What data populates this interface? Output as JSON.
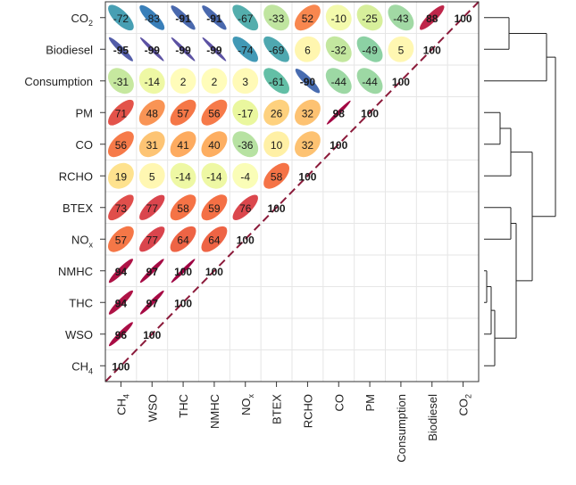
{
  "chart_data": {
    "type": "heatmap",
    "variables": [
      {
        "base": "CH",
        "sub": "4"
      },
      {
        "base": "WSO",
        "sub": ""
      },
      {
        "base": "THC",
        "sub": ""
      },
      {
        "base": "NMHC",
        "sub": ""
      },
      {
        "base": "NO",
        "sub": "x"
      },
      {
        "base": "BTEX",
        "sub": ""
      },
      {
        "base": "RCHO",
        "sub": ""
      },
      {
        "base": "CO",
        "sub": ""
      },
      {
        "base": "PM",
        "sub": ""
      },
      {
        "base": "Consumption",
        "sub": ""
      },
      {
        "base": "Biodiesel",
        "sub": ""
      },
      {
        "base": "CO",
        "sub": "2"
      }
    ],
    "value_scale": "correlation x 100",
    "value_range": [
      -100,
      100
    ],
    "matrix_upper": [
      [
        100,
        96,
        94,
        94,
        57,
        73,
        19,
        56,
        71,
        -31,
        -95,
        -72
      ],
      [
        null,
        100,
        97,
        97,
        77,
        77,
        5,
        31,
        48,
        -14,
        -99,
        -83
      ],
      [
        null,
        null,
        100,
        100,
        64,
        58,
        -14,
        41,
        57,
        2,
        -99,
        -91
      ],
      [
        null,
        null,
        null,
        100,
        64,
        59,
        -14,
        40,
        56,
        2,
        -99,
        -91
      ],
      [
        null,
        null,
        null,
        null,
        100,
        76,
        -4,
        -36,
        -17,
        3,
        -74,
        -67
      ],
      [
        null,
        null,
        null,
        null,
        null,
        100,
        58,
        10,
        26,
        -61,
        -69,
        -33
      ],
      [
        null,
        null,
        null,
        null,
        null,
        null,
        100,
        32,
        32,
        -90,
        6,
        52
      ],
      [
        null,
        null,
        null,
        null,
        null,
        null,
        null,
        100,
        98,
        -44,
        -32,
        -10
      ],
      [
        null,
        null,
        null,
        null,
        null,
        null,
        null,
        null,
        100,
        -44,
        -49,
        -25
      ],
      [
        null,
        null,
        null,
        null,
        null,
        null,
        null,
        null,
        null,
        100,
        5,
        -43
      ],
      [
        null,
        null,
        null,
        null,
        null,
        null,
        null,
        null,
        null,
        null,
        100,
        88
      ],
      [
        null,
        null,
        null,
        null,
        null,
        null,
        null,
        null,
        null,
        null,
        null,
        100
      ]
    ],
    "row_order_top_to_bottom": [
      11,
      10,
      9,
      8,
      7,
      6,
      5,
      4,
      3,
      2,
      1,
      0
    ],
    "column_order_left_to_right": [
      0,
      1,
      2,
      3,
      4,
      5,
      6,
      7,
      8,
      9,
      10,
      11
    ],
    "grid": true,
    "diagonal_line": "dashed",
    "dendrogram": "right",
    "colors": {
      "scale": [
        "#5e4fa2",
        "#3288bd",
        "#66c2a5",
        "#abdda4",
        "#e6f598",
        "#ffffbf",
        "#fee08b",
        "#fdae61",
        "#f46d43",
        "#d53e4f",
        "#9e0142"
      ],
      "diagonal_line": "#8b1a3a",
      "grid": "#e6e6e6",
      "frame": "#333333"
    }
  }
}
